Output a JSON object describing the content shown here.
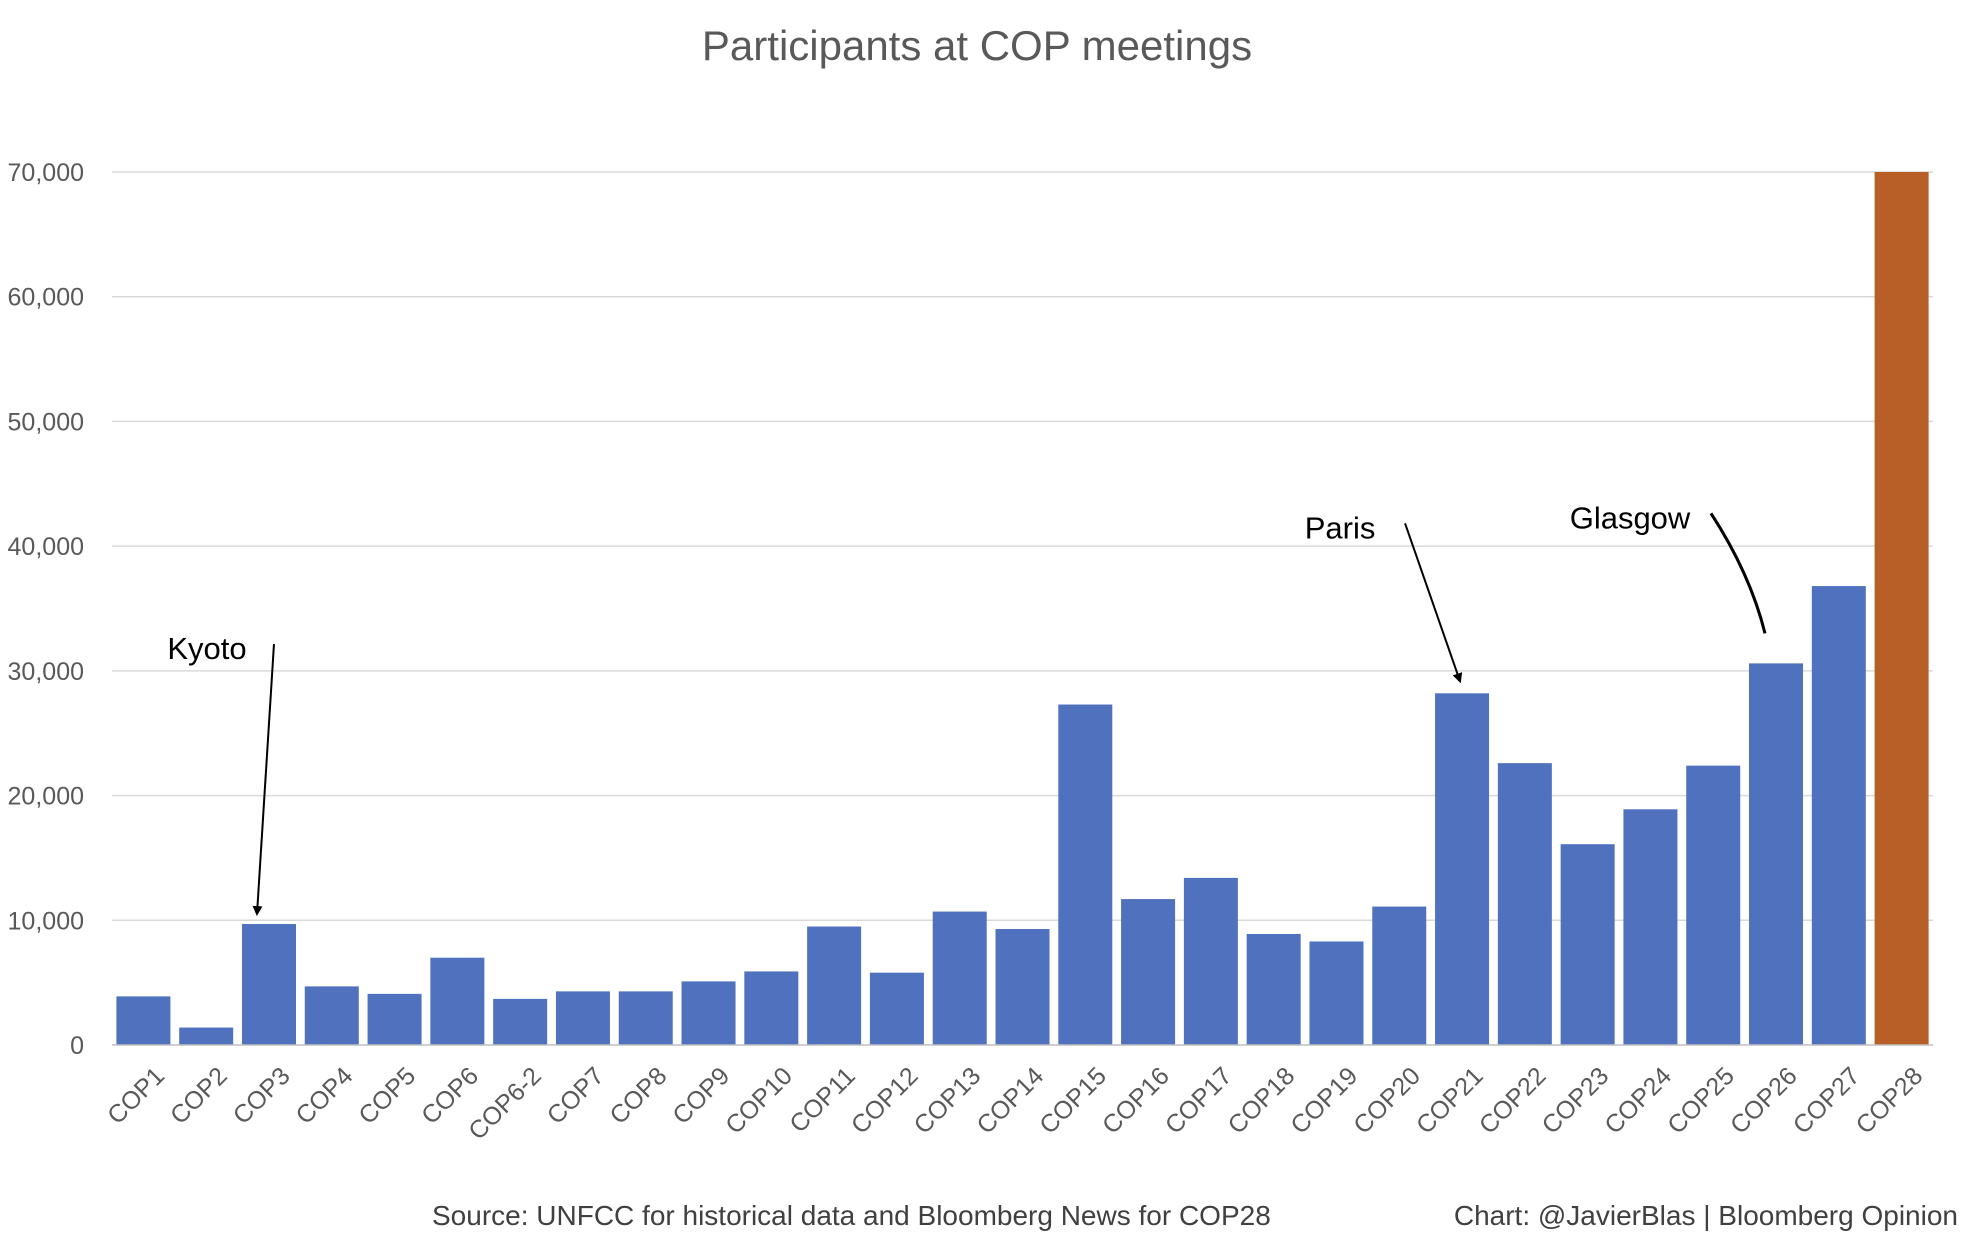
{
  "chart_data": {
    "type": "bar",
    "title": "Participants at COP meetings",
    "xlabel": "",
    "ylabel": "",
    "ylim": [
      0,
      70000
    ],
    "yticks": [
      0,
      10000,
      20000,
      30000,
      40000,
      50000,
      60000,
      70000
    ],
    "ytick_labels": [
      "0",
      "10,000",
      "20,000",
      "30,000",
      "40,000",
      "50,000",
      "60,000",
      "70,000"
    ],
    "grid": true,
    "legend": "none",
    "categories": [
      "COP1",
      "COP2",
      "COP3",
      "COP4",
      "COP5",
      "COP6",
      "COP6-2",
      "COP7",
      "COP8",
      "COP9",
      "COP10",
      "COP11",
      "COP12",
      "COP13",
      "COP14",
      "COP15",
      "COP16",
      "COP17",
      "COP18",
      "COP19",
      "COP20",
      "COP21",
      "COP22",
      "COP23",
      "COP24",
      "COP25",
      "COP26",
      "COP27",
      "COP28"
    ],
    "values": [
      3900,
      1400,
      9700,
      4700,
      4100,
      7000,
      3700,
      4300,
      4300,
      5100,
      5900,
      9500,
      5800,
      10700,
      9300,
      27300,
      11700,
      13400,
      8900,
      8300,
      11100,
      28200,
      22600,
      16100,
      18900,
      22400,
      30600,
      36800,
      70000
    ],
    "colors": {
      "default": "#4f71be",
      "highlight": "#b75f27",
      "highlight_category": "COP28",
      "grid": "#d9d9d9",
      "axis": "#bfbfbf"
    },
    "annotations": [
      {
        "text": "Kyoto",
        "category": "COP3"
      },
      {
        "text": "Paris",
        "category": "COP21"
      },
      {
        "text": "Glasgow",
        "category": "COP26"
      }
    ]
  },
  "footer": {
    "source": "Source: UNFCC for historical data and Bloomberg News for COP28",
    "credit": "Chart: @JavierBlas | Bloomberg Opinion"
  }
}
